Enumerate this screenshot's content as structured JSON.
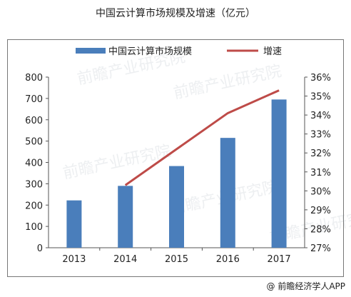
{
  "chart_data": {
    "type": "bar",
    "title": "中国云计算市场规模及增速（亿元）",
    "categories": [
      "2013",
      "2014",
      "2015",
      "2016",
      "2017"
    ],
    "series": [
      {
        "name": "中国云计算市场规模",
        "type": "bar",
        "axis": "left",
        "values": [
          222,
          290,
          383,
          515,
          695
        ],
        "color": "#4a7ebb"
      },
      {
        "name": "增速",
        "type": "line",
        "axis": "right",
        "values": [
          null,
          30.3,
          32.2,
          34.1,
          35.3
        ],
        "color": "#be4b48"
      }
    ],
    "y_left": {
      "min": 0,
      "max": 800,
      "step": 100,
      "ticks": [
        "0",
        "100",
        "200",
        "300",
        "400",
        "500",
        "600",
        "700",
        "800"
      ]
    },
    "y_right": {
      "min": 27,
      "max": 36,
      "step": 1,
      "ticks": [
        "27%",
        "28%",
        "29%",
        "30%",
        "31%",
        "32%",
        "33%",
        "34%",
        "35%",
        "36%"
      ]
    },
    "legend": "top",
    "grid": false
  },
  "watermark": "前瞻产业研究院",
  "source": "@ 前瞻经济学人APP"
}
